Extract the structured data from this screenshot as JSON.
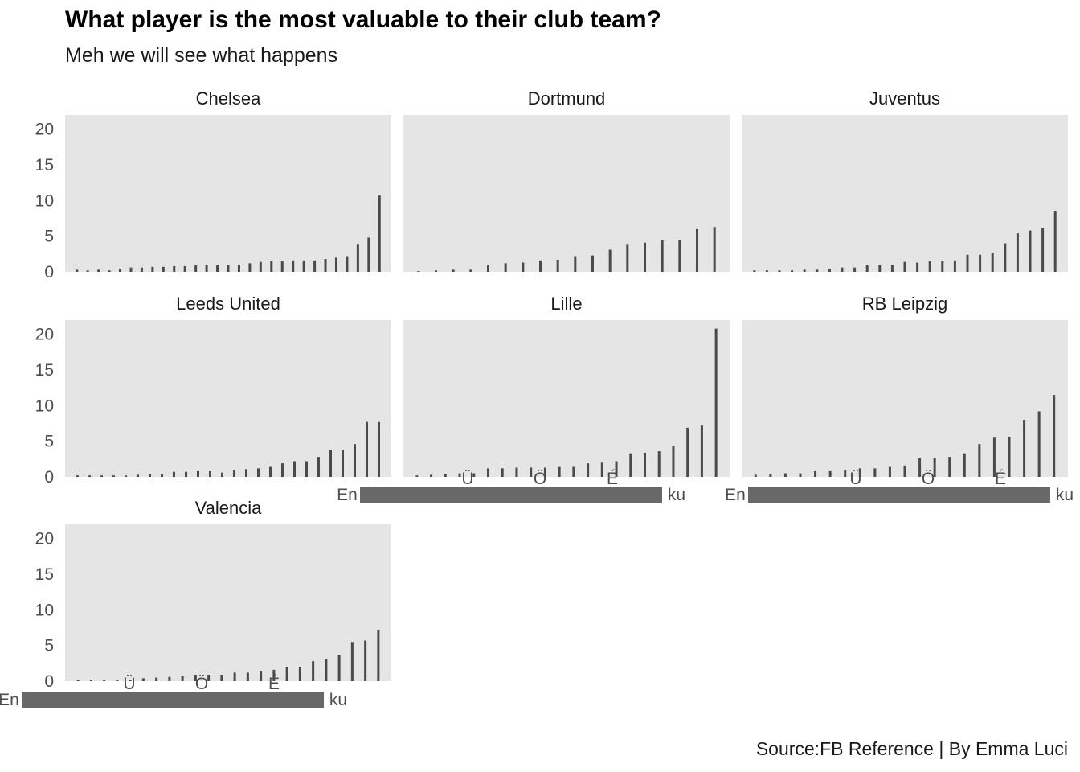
{
  "title": "What player is the most valuable to their club team?",
  "subtitle": "Meh we will see what happens",
  "caption": "Source:FB Reference | By Emma Luci",
  "colors": {
    "panel_bg": "#e5e5e5",
    "bar": "#4a4a4a",
    "grid": "#ebebeb"
  },
  "chart_data": {
    "type": "bar",
    "facet_by": "club",
    "ylim": [
      0,
      22
    ],
    "yticks": [
      0,
      5,
      10,
      15,
      20
    ],
    "grid": true,
    "xlabel": "",
    "ylabel": "",
    "xtick_label_sample": [
      "En",
      "Ü",
      "Ö",
      "É",
      "ku"
    ],
    "facets": [
      {
        "name": "Chelsea",
        "values": [
          0.3,
          0.2,
          0.3,
          0.2,
          0.4,
          0.6,
          0.6,
          0.7,
          0.7,
          0.8,
          0.8,
          0.9,
          1.0,
          0.9,
          0.9,
          1.0,
          1.2,
          1.4,
          1.5,
          1.5,
          1.6,
          1.6,
          1.6,
          1.8,
          2.0,
          2.2,
          3.8,
          4.8,
          10.7
        ]
      },
      {
        "name": "Dortmund",
        "values": [
          0.1,
          0.2,
          0.3,
          0.3,
          1.0,
          1.2,
          1.3,
          1.6,
          1.7,
          2.2,
          2.3,
          3.1,
          3.8,
          4.1,
          4.4,
          4.5,
          6.0,
          6.3
        ]
      },
      {
        "name": "Juventus",
        "values": [
          0.2,
          0.2,
          0.2,
          0.2,
          0.3,
          0.3,
          0.4,
          0.6,
          0.6,
          0.9,
          1.0,
          1.0,
          1.4,
          1.3,
          1.5,
          1.5,
          1.6,
          2.4,
          2.4,
          2.7,
          4.0,
          5.4,
          5.8,
          6.2,
          8.5
        ]
      },
      {
        "name": "Leeds United",
        "values": [
          0.2,
          0.2,
          0.2,
          0.2,
          0.2,
          0.3,
          0.4,
          0.4,
          0.7,
          0.7,
          0.8,
          0.8,
          0.6,
          0.9,
          1.1,
          1.2,
          1.4,
          1.9,
          2.2,
          2.2,
          2.8,
          3.8,
          3.8,
          4.6,
          7.7,
          7.7
        ]
      },
      {
        "name": "Lille",
        "values": [
          0.2,
          0.3,
          0.4,
          0.5,
          0.5,
          1.2,
          1.2,
          1.3,
          1.3,
          1.3,
          1.4,
          1.4,
          1.9,
          2.0,
          2.2,
          3.3,
          3.4,
          3.6,
          4.3,
          6.9,
          7.2,
          20.8
        ]
      },
      {
        "name": "RB Leipzig",
        "values": [
          0.3,
          0.4,
          0.5,
          0.5,
          0.8,
          0.8,
          1.0,
          1.2,
          1.2,
          1.4,
          1.6,
          2.6,
          2.6,
          2.8,
          3.3,
          4.6,
          5.5,
          5.6,
          8.0,
          9.2,
          11.5
        ]
      },
      {
        "name": "Valencia",
        "values": [
          0.2,
          0.2,
          0.2,
          0.2,
          0.2,
          0.4,
          0.5,
          0.6,
          0.7,
          0.9,
          0.9,
          0.9,
          1.2,
          1.2,
          1.4,
          1.6,
          2.0,
          2.0,
          2.8,
          3.1,
          3.7,
          5.5,
          5.7,
          7.2
        ]
      }
    ]
  }
}
